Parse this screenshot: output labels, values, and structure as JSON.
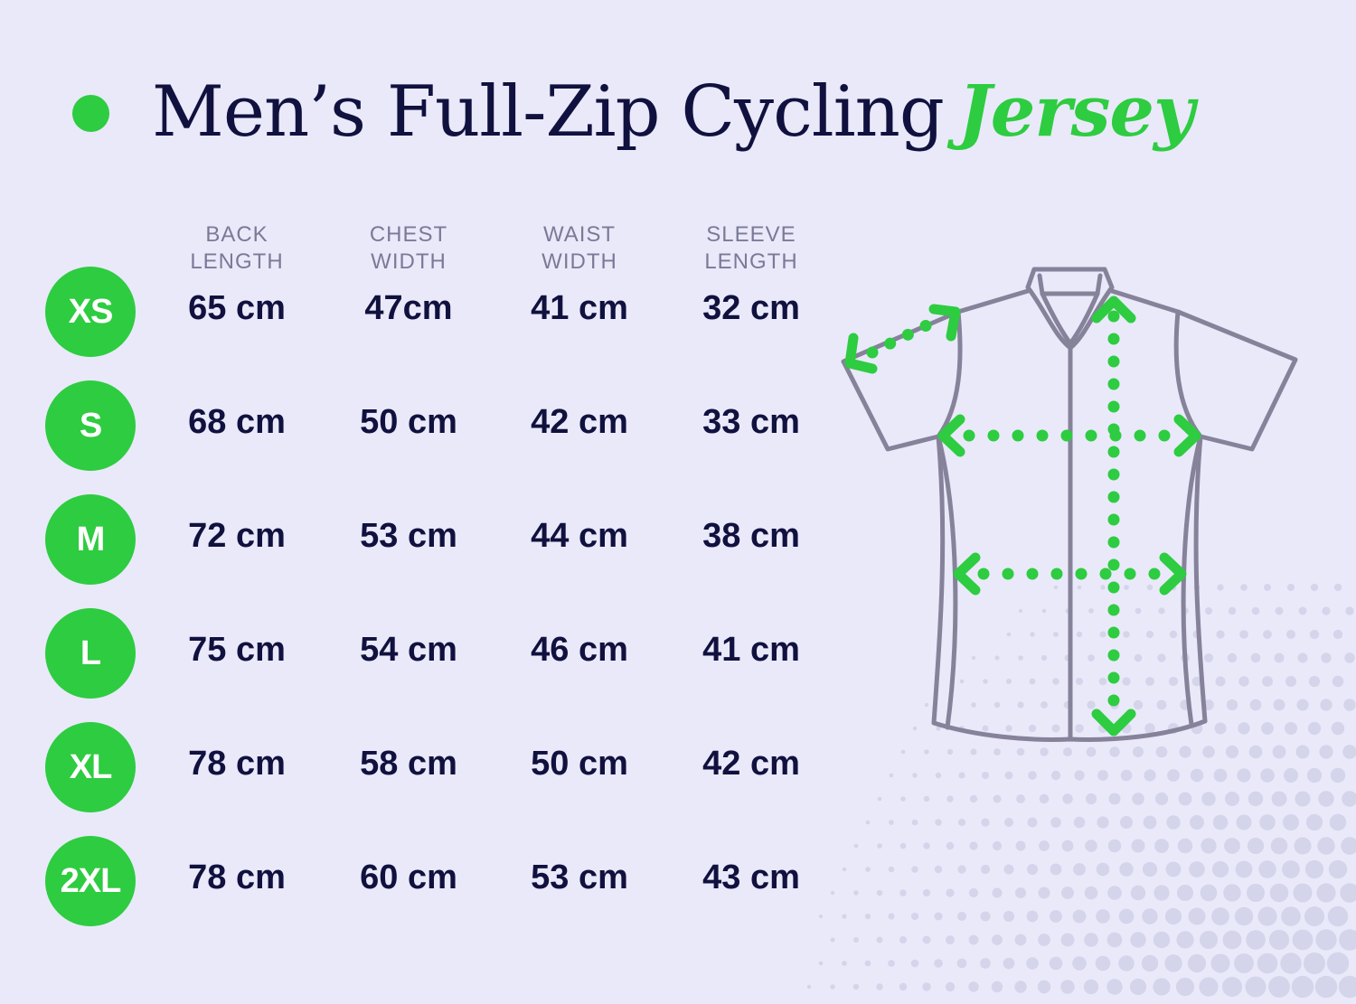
{
  "title": {
    "main": "Men’s Full-Zip Cycling",
    "accent": "Jersey"
  },
  "columns": [
    {
      "line1": "BACK",
      "line2": "LENGTH"
    },
    {
      "line1": "CHEST",
      "line2": "WIDTH"
    },
    {
      "line1": "WAIST",
      "line2": "WIDTH"
    },
    {
      "line1": "SLEEVE",
      "line2": "LENGTH"
    }
  ],
  "rows": [
    {
      "size": "XS",
      "values": [
        "65 cm",
        "47cm",
        "41 cm",
        "32 cm"
      ]
    },
    {
      "size": "S",
      "values": [
        "68 cm",
        "50 cm",
        "42 cm",
        "33 cm"
      ]
    },
    {
      "size": "M",
      "values": [
        "72 cm",
        "53 cm",
        "44 cm",
        "38 cm"
      ]
    },
    {
      "size": "L",
      "values": [
        "75 cm",
        "54 cm",
        "46 cm",
        "41 cm"
      ]
    },
    {
      "size": "XL",
      "values": [
        "78 cm",
        "58 cm",
        "50 cm",
        "42 cm"
      ]
    },
    {
      "size": "2XL",
      "values": [
        "78 cm",
        "60 cm",
        "53 cm",
        "43 cm"
      ]
    }
  ],
  "diagram": {
    "icon": "jersey-measurement-icon",
    "outline_color": "#86829a",
    "measure_color": "#2ecc40"
  },
  "colors": {
    "background": "#e9e9fa",
    "accent": "#2ecc40",
    "text": "#11113f",
    "header_text": "#7a7a98"
  }
}
